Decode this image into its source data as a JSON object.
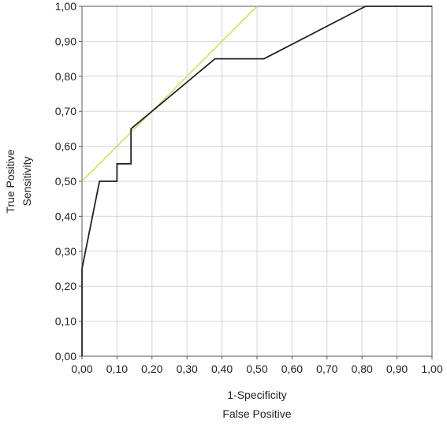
{
  "chart_data": {
    "type": "line",
    "title": "",
    "xlabel": [
      "1-Specificity",
      "False Positive"
    ],
    "ylabel": [
      "True Positive",
      "Sensitivity"
    ],
    "xlim": [
      0,
      1
    ],
    "ylim": [
      0,
      1
    ],
    "x_ticks": [
      "0,00",
      "0,10",
      "0,20",
      "0,30",
      "0,40",
      "0,50",
      "0,60",
      "0,70",
      "0,80",
      "0,90",
      "1,00"
    ],
    "y_ticks": [
      "0,00",
      "0,10",
      "0,20",
      "0,30",
      "0,40",
      "0,50",
      "0,60",
      "0,70",
      "0,80",
      "0,90",
      "1,00"
    ],
    "grid": true,
    "legend": "none",
    "series": [
      {
        "color": "#222222",
        "x": [
          0.0,
          0.0,
          0.0,
          0.05,
          0.1,
          0.1,
          0.14,
          0.14,
          0.2,
          0.38,
          0.52,
          0.81,
          1.0
        ],
        "y": [
          0.0,
          0.25,
          0.25,
          0.5,
          0.5,
          0.55,
          0.55,
          0.65,
          0.7,
          0.85,
          0.85,
          1.0,
          1.0
        ]
      },
      {
        "color": "#d9d96a",
        "x": [
          0.0,
          0.5
        ],
        "y": [
          0.5,
          1.0
        ]
      }
    ]
  }
}
